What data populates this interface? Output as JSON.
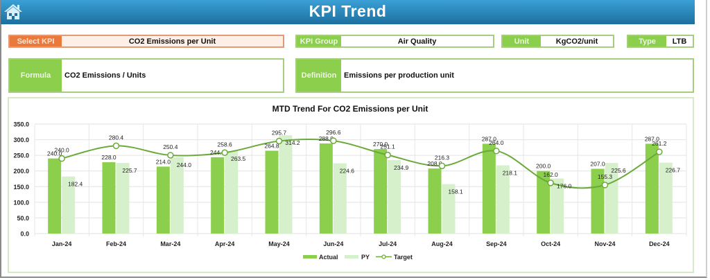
{
  "header": {
    "title": "KPI Trend",
    "home_icon": "home-icon"
  },
  "filters": {
    "select_kpi": {
      "label": "Select KPI",
      "value": "CO2 Emissions per Unit"
    },
    "kpi_group": {
      "label": "KPI Group",
      "value": "Air Quality"
    },
    "unit": {
      "label": "Unit",
      "value": "KgCO2/unit"
    },
    "type": {
      "label": "Type",
      "value": "LTB"
    }
  },
  "details": {
    "formula": {
      "label": "Formula",
      "value": "CO2 Emissions / Units"
    },
    "definition": {
      "label": "Definition",
      "value": "Emissions per production unit"
    }
  },
  "colors": {
    "actual": "#8ccf4d",
    "py": "#d7f0cc",
    "target": "#6aaa3a",
    "header": "#2a86bd",
    "select": "#ea7a3c"
  },
  "chart_data": {
    "type": "bar",
    "title": "MTD Trend For CO2 Emissions per Unit",
    "xlabel": "",
    "ylabel": "",
    "ylim": [
      0,
      350
    ],
    "yticks": [
      "0.0",
      "50.0",
      "100.0",
      "150.0",
      "200.0",
      "250.0",
      "300.0",
      "350.0"
    ],
    "grid": true,
    "legend_position": "bottom",
    "categories": [
      "Jan-24",
      "Feb-24",
      "Mar-24",
      "Apr-24",
      "May-24",
      "Jun-24",
      "Jul-24",
      "Aug-24",
      "Sep-24",
      "Oct-24",
      "Nov-24",
      "Dec-24"
    ],
    "series": [
      {
        "name": "Actual",
        "type": "bar",
        "values": [
          240.0,
          228.0,
          214.0,
          244.0,
          264.8,
          288.0,
          270.0,
          208.0,
          287.0,
          200.0,
          207.0,
          287.0
        ]
      },
      {
        "name": "PY",
        "type": "bar",
        "values": [
          182.4,
          225.7,
          244.0,
          263.5,
          314.2,
          224.6,
          234.9,
          158.1,
          218.1,
          176.0,
          225.6,
          226.7
        ]
      },
      {
        "name": "Target",
        "type": "line",
        "values": [
          240.0,
          280.4,
          250.4,
          258.6,
          295.7,
          296.6,
          251.1,
          216.3,
          264.0,
          162.0,
          155.3,
          261.2
        ]
      }
    ],
    "legend": [
      "Actual",
      "PY",
      "Target"
    ]
  }
}
